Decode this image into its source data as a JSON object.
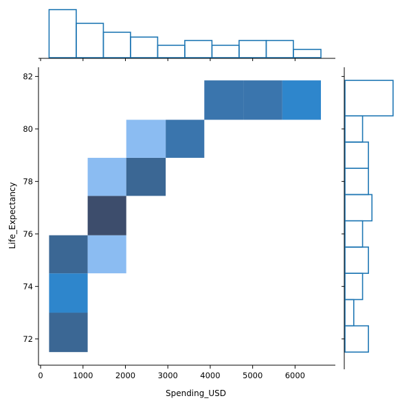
{
  "chart_data": {
    "type": "heatmap",
    "subtype": "joint-histogram",
    "xlabel": "Spending_USD",
    "ylabel": "Life_Expectancy",
    "xlim": [
      -50,
      6950
    ],
    "ylim": [
      71,
      82.35
    ],
    "xticks": [
      0,
      1000,
      2000,
      3000,
      4000,
      5000,
      6000
    ],
    "xtick_labels": [
      "0",
      "1000",
      "2000",
      "3000",
      "4000",
      "5000",
      "6000"
    ],
    "yticks": [
      72,
      74,
      76,
      78,
      80,
      82
    ],
    "ytick_labels": [
      "72",
      "74",
      "76",
      "78",
      "80",
      "82"
    ],
    "grid": false,
    "bivariate_cells": [
      {
        "x0": 200,
        "x1": 1110,
        "y0": 71.5,
        "y1": 73.0,
        "color": "#3b6794"
      },
      {
        "x0": 200,
        "x1": 1110,
        "y0": 73.0,
        "y1": 74.5,
        "color": "#2e86cc"
      },
      {
        "x0": 200,
        "x1": 1110,
        "y0": 74.5,
        "y1": 75.95,
        "color": "#3b6794"
      },
      {
        "x0": 1110,
        "x1": 2020,
        "y0": 74.5,
        "y1": 75.95,
        "color": "#8bbcf2"
      },
      {
        "x0": 1110,
        "x1": 2020,
        "y0": 75.95,
        "y1": 77.45,
        "color": "#3d4d6c"
      },
      {
        "x0": 1110,
        "x1": 2020,
        "y0": 77.45,
        "y1": 78.9,
        "color": "#8bbcf2"
      },
      {
        "x0": 2020,
        "x1": 2950,
        "y0": 77.45,
        "y1": 78.9,
        "color": "#3b6794"
      },
      {
        "x0": 2020,
        "x1": 2950,
        "y0": 78.9,
        "y1": 80.35,
        "color": "#8bbcf2"
      },
      {
        "x0": 2950,
        "x1": 3860,
        "y0": 78.9,
        "y1": 80.35,
        "color": "#3a75ad"
      },
      {
        "x0": 3860,
        "x1": 4780,
        "y0": 80.35,
        "y1": 81.85,
        "color": "#3a75ad"
      },
      {
        "x0": 4780,
        "x1": 5700,
        "y0": 80.35,
        "y1": 81.85,
        "color": "#3a75ad"
      },
      {
        "x0": 5700,
        "x1": 6610,
        "y0": 80.35,
        "y1": 81.85,
        "color": "#2e86cc"
      }
    ],
    "x_marginal": {
      "bin_edges": [
        200,
        840,
        1480,
        2120,
        2760,
        3400,
        4040,
        4680,
        5320,
        5960,
        6610
      ],
      "counts": [
        7,
        5,
        3.7,
        3,
        1.8,
        2.5,
        1.8,
        2.5,
        2.5,
        1.2
      ]
    },
    "y_marginal": {
      "bin_edges": [
        71.5,
        72.5,
        73.5,
        74.5,
        75.5,
        76.5,
        77.5,
        78.5,
        79.5,
        80.5,
        81.85
      ],
      "counts": [
        2,
        0.75,
        1.5,
        2,
        1.5,
        2.3,
        2,
        2,
        1.5,
        4.1
      ]
    },
    "colors": {
      "accent": "#1f77b4",
      "axis": "#000000"
    }
  }
}
